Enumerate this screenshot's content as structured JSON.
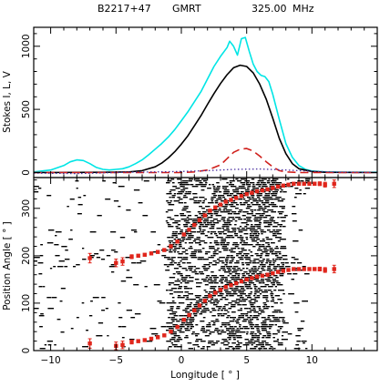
{
  "header": {
    "source": "B2217+47",
    "telescope": "GMRT",
    "frequency": "325.00",
    "frequency_unit": "MHz"
  },
  "colors": {
    "total_intensity_I": "#00e5e5",
    "linear_L": "#000000",
    "circular_V": "#d0201c",
    "circular_V_dotted": "#4a2fa0",
    "pa_points": "#e0261c",
    "frame": "#000000",
    "background": "#ffffff"
  },
  "chart_data": [
    {
      "type": "line",
      "panel": "profile",
      "title": "",
      "xlabel": "",
      "ylabel": "Stokes I, L, V",
      "xlim": [
        -11.3,
        15
      ],
      "ylim": [
        -40,
        1150
      ],
      "x_ticks": [
        -10,
        -5,
        0,
        5,
        10
      ],
      "y_ticks": [
        0,
        500,
        1000
      ],
      "y_tick_labels": [
        "0",
        "500",
        "1000"
      ],
      "series": [
        {
          "style": "solid",
          "color": "#00e5e5",
          "x": [
            -11.3,
            -10,
            -9,
            -8.5,
            -8,
            -7.5,
            -7,
            -6.5,
            -6,
            -5.5,
            -5,
            -4.5,
            -4,
            -3.5,
            -3,
            -2.5,
            -2,
            -1.5,
            -1,
            -0.5,
            0,
            0.5,
            1,
            1.5,
            2,
            2.5,
            3,
            3.5,
            3.7,
            4,
            4.3,
            4.6,
            4.9,
            5.2,
            5.5,
            5.8,
            6.1,
            6.4,
            6.7,
            7,
            7.5,
            8,
            8.5,
            9,
            9.5,
            10,
            11,
            12,
            13,
            15
          ],
          "y": [
            5,
            20,
            55,
            85,
            100,
            95,
            70,
            40,
            25,
            20,
            25,
            30,
            45,
            70,
            100,
            140,
            185,
            230,
            280,
            340,
            410,
            480,
            560,
            640,
            740,
            840,
            920,
            990,
            1040,
            1000,
            930,
            1060,
            1070,
            960,
            860,
            800,
            770,
            760,
            720,
            620,
            420,
            230,
            120,
            55,
            25,
            12,
            5,
            3,
            2,
            2
          ]
        },
        {
          "style": "solid",
          "color": "#000000",
          "x": [
            -11.3,
            -6,
            -4,
            -3,
            -2,
            -1.5,
            -1,
            -0.5,
            0,
            0.5,
            1,
            1.5,
            2,
            2.5,
            3,
            3.5,
            4,
            4.5,
            5,
            5.5,
            6,
            6.5,
            7,
            7.5,
            8,
            8.5,
            9,
            10,
            11,
            15
          ],
          "y": [
            0,
            2,
            5,
            15,
            45,
            75,
            115,
            165,
            225,
            290,
            370,
            450,
            540,
            625,
            705,
            775,
            830,
            850,
            840,
            790,
            700,
            580,
            430,
            270,
            150,
            70,
            30,
            8,
            2,
            0
          ]
        },
        {
          "style": "dashed",
          "color": "#d0201c",
          "x": [
            -11.3,
            0,
            1,
            2,
            3,
            3.5,
            4,
            4.5,
            5,
            5.5,
            6,
            6.5,
            7,
            7.5,
            8,
            9,
            15
          ],
          "y": [
            0,
            0,
            5,
            20,
            60,
            110,
            160,
            185,
            190,
            170,
            130,
            85,
            45,
            15,
            5,
            0,
            0
          ]
        },
        {
          "style": "dotted",
          "color": "#4a2fa0",
          "x": [
            -11.3,
            -8,
            -6,
            -4,
            -2,
            0,
            2,
            4,
            6,
            8,
            10,
            12,
            15
          ],
          "y": [
            -5,
            -8,
            -3,
            3,
            5,
            8,
            15,
            25,
            28,
            20,
            10,
            3,
            0
          ]
        }
      ]
    },
    {
      "type": "scatter",
      "panel": "position-angle",
      "title": "",
      "xlabel": "Longitude [ ° ]",
      "ylabel": "Position Angle [ ° ]",
      "xlim": [
        -11.3,
        15
      ],
      "ylim": [
        0,
        365
      ],
      "x_ticks": [
        -10,
        -5,
        0,
        5,
        10
      ],
      "x_tick_labels": [
        "−10",
        "−5",
        "0",
        "5",
        "10"
      ],
      "y_ticks": [
        0,
        100,
        200,
        300
      ],
      "y_tick_labels": [
        "0",
        "100",
        "200",
        "300"
      ],
      "background": "greyscale single-pulse PA histogram (black on white), concentrated between longitude -1 and 7.5",
      "points_lower": {
        "x": [
          -7,
          -5,
          -4.5,
          -3.8,
          -3.3,
          -2.8,
          -2.3,
          -1.8,
          -1.3,
          -0.8,
          -0.3,
          0.2,
          0.6,
          1.0,
          1.4,
          1.8,
          2.2,
          2.6,
          3.0,
          3.4,
          3.8,
          4.2,
          4.6,
          5.0,
          5.4,
          5.8,
          6.2,
          6.6,
          7.0,
          7.4,
          7.8,
          8.2,
          8.6,
          9.0,
          9.4,
          9.8,
          10.2,
          10.6,
          11.0,
          11.7
        ],
        "y": [
          15,
          10,
          12,
          18,
          20,
          22,
          25,
          28,
          32,
          40,
          50,
          65,
          75,
          85,
          95,
          105,
          115,
          122,
          128,
          134,
          138,
          142,
          146,
          150,
          153,
          156,
          158,
          160,
          163,
          166,
          168,
          170,
          172,
          172,
          172,
          172,
          172,
          172,
          170,
          172
        ],
        "yerr": [
          10,
          8,
          8,
          4,
          3,
          2,
          2,
          2,
          2,
          2,
          2,
          2,
          2,
          2,
          2,
          2,
          2,
          2,
          2,
          2,
          2,
          2,
          2,
          2,
          2,
          2,
          2,
          2,
          2,
          2,
          2,
          2,
          2,
          2,
          2,
          3,
          3,
          4,
          5,
          8
        ]
      },
      "points_upper": {
        "x": [
          -7,
          -5,
          -4.5,
          -3.8,
          -3.3,
          -2.8,
          -2.3,
          -1.8,
          -1.3,
          -0.8,
          -0.3,
          0.2,
          0.6,
          1.0,
          1.4,
          1.8,
          2.2,
          2.6,
          3.0,
          3.4,
          3.8,
          4.2,
          4.6,
          5.0,
          5.4,
          5.8,
          6.2,
          6.6,
          7.0,
          7.4,
          7.8,
          8.2,
          8.6,
          9.0,
          9.4,
          9.8,
          10.2,
          10.6,
          11.0,
          11.7
        ],
        "y": [
          195,
          185,
          188,
          198,
          200,
          202,
          205,
          208,
          212,
          220,
          230,
          245,
          255,
          265,
          275,
          285,
          295,
          302,
          308,
          314,
          318,
          322,
          326,
          330,
          333,
          336,
          338,
          340,
          343,
          346,
          348,
          350,
          352,
          352,
          352,
          352,
          352,
          352,
          350,
          352
        ],
        "yerr": [
          10,
          8,
          8,
          4,
          3,
          2,
          2,
          2,
          2,
          2,
          2,
          2,
          2,
          2,
          2,
          2,
          2,
          2,
          2,
          2,
          2,
          2,
          2,
          2,
          2,
          2,
          2,
          2,
          2,
          2,
          2,
          2,
          2,
          2,
          2,
          3,
          3,
          4,
          5,
          8
        ]
      }
    }
  ]
}
